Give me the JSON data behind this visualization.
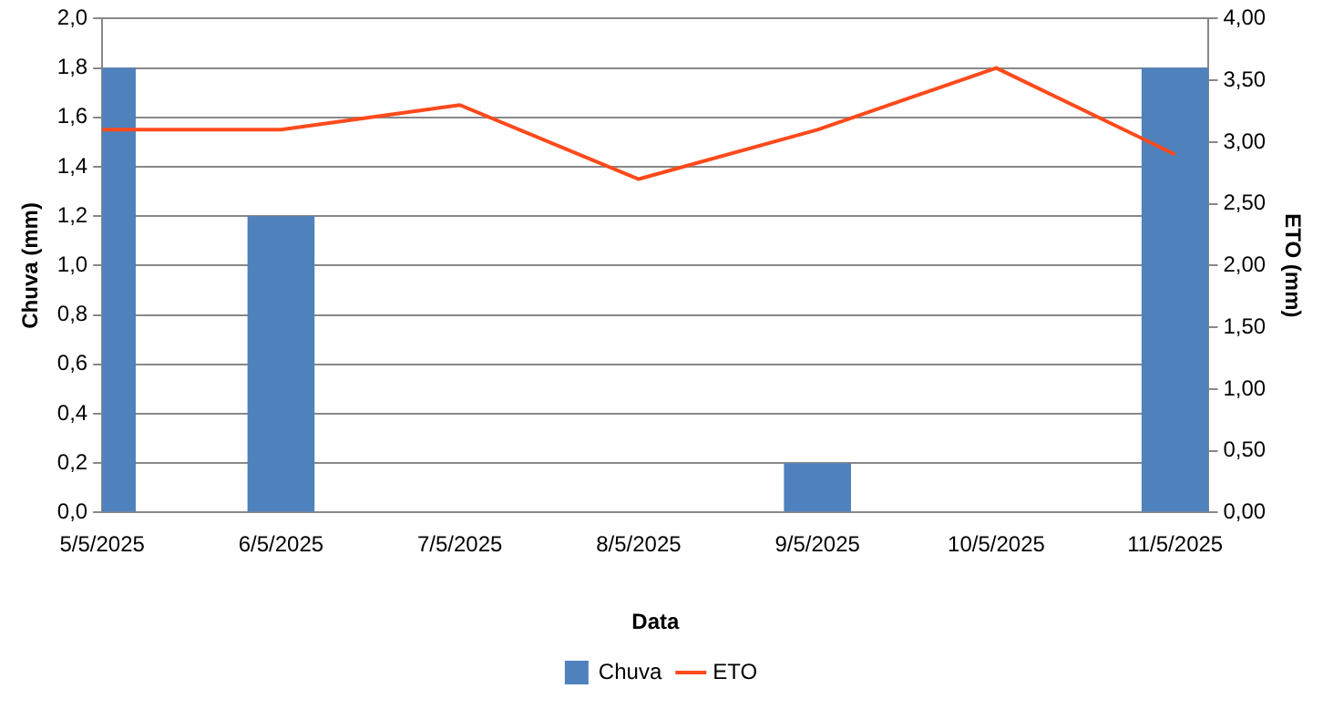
{
  "chart_data": {
    "type": "bar",
    "xlabel": "Data",
    "ylabel": "Chuva (mm)",
    "y2label": "ETO (mm)",
    "x": [
      "2025-05-05",
      "2025-05-06",
      "2025-05-07",
      "2025-05-08",
      "2025-05-09",
      "2025-05-10",
      "2025-05-11"
    ],
    "xlim": [
      "2025-05-05",
      "2025-05-11T04:30"
    ],
    "xticks": [
      {
        "value": "2025-05-05",
        "label": "5/5/2025"
      },
      {
        "value": "2025-05-06",
        "label": "6/5/2025"
      },
      {
        "value": "2025-05-07",
        "label": "7/5/2025"
      },
      {
        "value": "2025-05-08",
        "label": "8/5/2025"
      },
      {
        "value": "2025-05-09",
        "label": "9/5/2025"
      },
      {
        "value": "2025-05-10",
        "label": "10/5/2025"
      },
      {
        "value": "2025-05-11",
        "label": "11/5/2025"
      }
    ],
    "series": [
      {
        "name": "Chuva",
        "color": "#4f81bd",
        "values": [
          1.8,
          1.2,
          0,
          0,
          0.2,
          0,
          1.8
        ]
      },
      {
        "name": "ETO",
        "type": "line",
        "axis": "y2",
        "color": "#ff4a1c",
        "values": [
          3.1,
          3.1,
          3.3,
          2.7,
          3.1,
          3.6,
          2.9
        ]
      }
    ],
    "ylim": [
      0,
      2
    ],
    "yticks": [
      {
        "value": 0,
        "label": "0,0"
      },
      {
        "value": 0.2,
        "label": "0,2"
      },
      {
        "value": 0.4,
        "label": "0,4"
      },
      {
        "value": 0.6,
        "label": "0,6"
      },
      {
        "value": 0.8,
        "label": "0,8"
      },
      {
        "value": 1,
        "label": "1,0"
      },
      {
        "value": 1.2,
        "label": "1,2"
      },
      {
        "value": 1.4,
        "label": "1,4"
      },
      {
        "value": 1.6,
        "label": "1,6"
      },
      {
        "value": 1.8,
        "label": "1,8"
      },
      {
        "value": 2,
        "label": "2,0"
      }
    ],
    "y2lim": [
      0,
      4
    ],
    "y2ticks": [
      {
        "value": 0,
        "label": "0,00"
      },
      {
        "value": 0.5,
        "label": "0,50"
      },
      {
        "value": 1,
        "label": "1,00"
      },
      {
        "value": 1.5,
        "label": "1,50"
      },
      {
        "value": 2,
        "label": "2,00"
      },
      {
        "value": 2.5,
        "label": "2,50"
      },
      {
        "value": 3,
        "label": "3,00"
      },
      {
        "value": 3.5,
        "label": "3,50"
      },
      {
        "value": 4,
        "label": "4,00"
      }
    ],
    "grid": "y",
    "legend": "bottom",
    "marker": "none"
  }
}
